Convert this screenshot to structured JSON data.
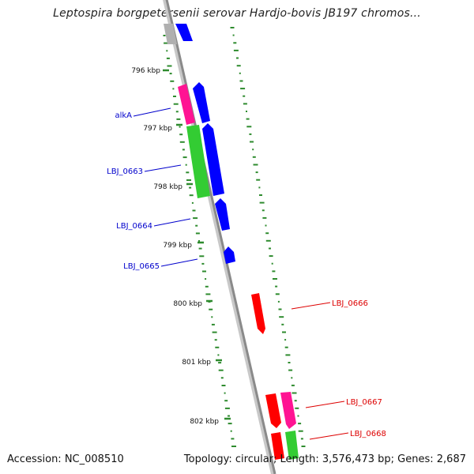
{
  "title": "Leptospira borgpetersenii serovar Hardjo-bovis JB197 chromos...",
  "footer": {
    "accession": "Accession: NC_008510",
    "summary": "Topology: circular; Length: 3,576,473 bp; Genes: 2,687"
  },
  "colors": {
    "backbone": "#8a8a8a",
    "gc_ticks": "#2e8b2e",
    "forward_label": "#0000cc",
    "reverse_label": "#dd0000",
    "blue_gene": "#0000ff",
    "red_gene": "#ff0000",
    "magenta_gene": "#ff1493",
    "green_gene": "#33cc33",
    "gray_gene": "#b0b0b0"
  },
  "kbp_ticks": [
    {
      "label": "796 kbp"
    },
    {
      "label": "797 kbp"
    },
    {
      "label": "798 kbp"
    },
    {
      "label": "799 kbp"
    },
    {
      "label": "800 kbp"
    },
    {
      "label": "801 kbp"
    },
    {
      "label": "802 kbp"
    }
  ],
  "gene_labels": [
    {
      "name": "alkA",
      "strand": "forward"
    },
    {
      "name": "LBJ_0663",
      "strand": "forward"
    },
    {
      "name": "LBJ_0664",
      "strand": "forward"
    },
    {
      "name": "LBJ_0665",
      "strand": "forward"
    },
    {
      "name": "LBJ_0666",
      "strand": "reverse"
    },
    {
      "name": "LBJ_0667",
      "strand": "reverse"
    },
    {
      "name": "LBJ_0668",
      "strand": "reverse"
    }
  ]
}
